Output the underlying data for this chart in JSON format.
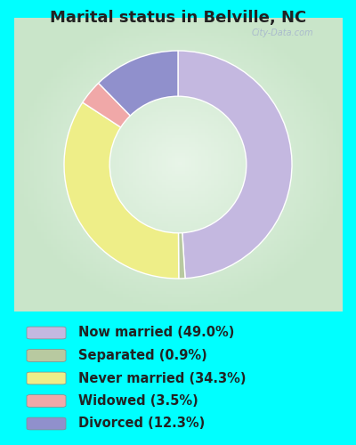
{
  "title": "Marital status in Belville, NC",
  "slices": [
    {
      "label": "Now married (49.0%)",
      "value": 49.0,
      "color": "#c4b8e0"
    },
    {
      "label": "Separated (0.9%)",
      "value": 0.9,
      "color": "#b8c9a0"
    },
    {
      "label": "Never married (34.3%)",
      "value": 34.3,
      "color": "#eeee88"
    },
    {
      "label": "Widowed (3.5%)",
      "value": 3.5,
      "color": "#f0a8a8"
    },
    {
      "label": "Divorced (12.3%)",
      "value": 12.3,
      "color": "#9090cc"
    }
  ],
  "bg_cyan": "#00ffff",
  "chart_bg_color_center": "#e8f5e8",
  "chart_bg_color_edge": "#c8e8c8",
  "title_color": "#222222",
  "title_fontsize": 13,
  "legend_fontsize": 10.5,
  "startangle": 90,
  "watermark": "City-Data.com",
  "watermark_color": "#aabbcc"
}
